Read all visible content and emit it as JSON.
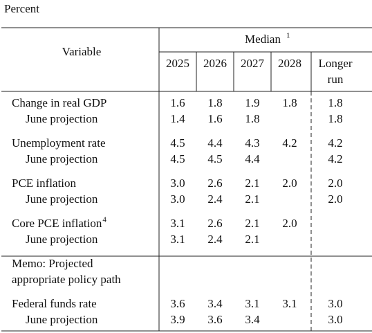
{
  "unit": "Percent",
  "header": {
    "variable": "Variable",
    "median": {
      "text": "Median",
      "note": "1"
    },
    "columns": [
      "2025",
      "2026",
      "2027",
      "2028",
      [
        "Longer",
        "run"
      ]
    ]
  },
  "rows": [
    {
      "label": "Change in real GDP",
      "values": [
        "1.6",
        "1.8",
        "1.9",
        "1.8",
        "1.8"
      ]
    },
    {
      "label": "June projection",
      "indent": true,
      "values": [
        "1.4",
        "1.6",
        "1.8",
        null,
        "1.8"
      ]
    },
    {
      "label": "Unemployment rate",
      "values": [
        "4.5",
        "4.4",
        "4.3",
        "4.2",
        "4.2"
      ]
    },
    {
      "label": "June projection",
      "indent": true,
      "values": [
        "4.5",
        "4.5",
        "4.4",
        null,
        "4.2"
      ]
    },
    {
      "label": "PCE inflation",
      "values": [
        "3.0",
        "2.6",
        "2.1",
        "2.0",
        "2.0"
      ]
    },
    {
      "label": "June projection",
      "indent": true,
      "values": [
        "3.0",
        "2.4",
        "2.1",
        null,
        "2.0"
      ]
    },
    {
      "label": "Core PCE inflation",
      "note": "4",
      "values": [
        "3.1",
        "2.6",
        "2.1",
        "2.0",
        null
      ]
    },
    {
      "label": "June projection",
      "indent": true,
      "values": [
        "3.1",
        "2.4",
        "2.1",
        null,
        null
      ]
    }
  ],
  "memo": {
    "lines": [
      "Memo: Projected",
      "appropriate policy path"
    ]
  },
  "memo_rows": [
    {
      "label": "Federal funds rate",
      "values": [
        "3.6",
        "3.4",
        "3.1",
        "3.1",
        "3.0"
      ]
    },
    {
      "label": "June projection",
      "indent": true,
      "values": [
        "3.9",
        "3.6",
        "3.4",
        null,
        "3.0"
      ]
    }
  ]
}
